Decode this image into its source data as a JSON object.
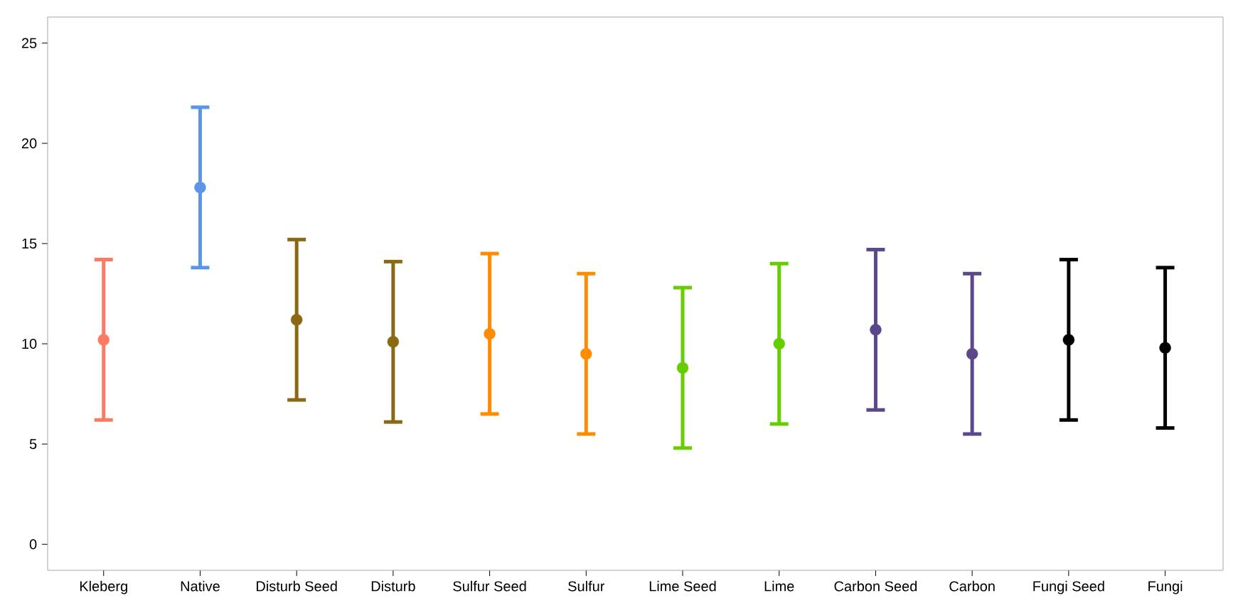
{
  "chart_data": {
    "type": "scatter",
    "categories": [
      "Kleberg",
      "Native",
      "Disturb Seed",
      "Disturb",
      "Sulfur Seed",
      "Sulfur",
      "Lime Seed",
      "Lime",
      "Carbon Seed",
      "Carbon",
      "Fungi Seed",
      "Fungi"
    ],
    "values": [
      10.2,
      17.8,
      11.2,
      10.1,
      10.5,
      9.5,
      8.8,
      10.0,
      10.7,
      9.5,
      10.2,
      9.8
    ],
    "errors": [
      4,
      4,
      4,
      4,
      4,
      4,
      4,
      4,
      4,
      4,
      4,
      4
    ],
    "colors": [
      "#fa7a62",
      "#5b95e8",
      "#8b6914",
      "#8b6914",
      "#ff8c00",
      "#ff8c00",
      "#66cd00",
      "#66cd00",
      "#5d478b",
      "#5d478b",
      "#000000",
      "#000000"
    ],
    "ylim": [
      -1.3,
      26.3
    ],
    "yticks": [
      0,
      5,
      10,
      15,
      20,
      25
    ],
    "marker": "circle",
    "grid": false
  }
}
